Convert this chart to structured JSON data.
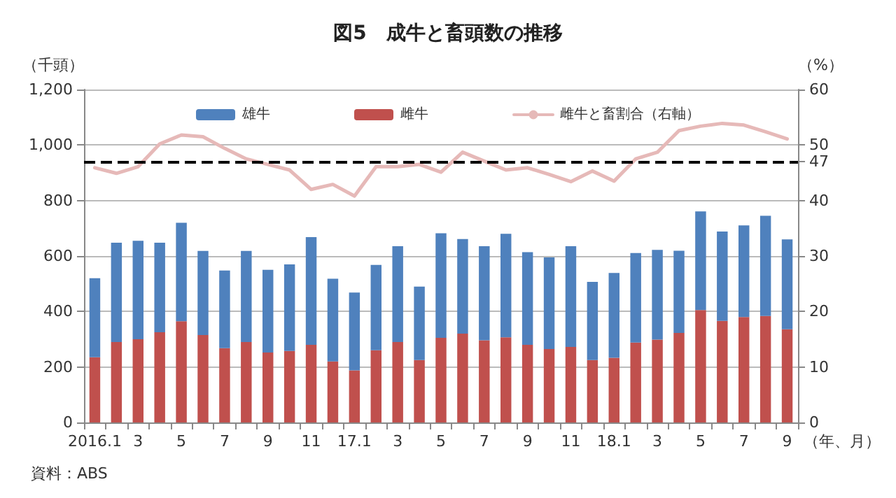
{
  "chart_data": {
    "type": "bar",
    "title": "図5　成牛と畜頭数の推移",
    "ylabel": "（千頭）",
    "y2label": "（%）",
    "xlabel": "（年、月）",
    "categories": [
      "2016.1",
      null,
      "3",
      null,
      "5",
      null,
      "7",
      null,
      "9",
      null,
      "11",
      null,
      "17.1",
      null,
      "3",
      null,
      "5",
      null,
      "7",
      null,
      "9",
      null,
      "11",
      null,
      "18.1",
      null,
      "3",
      null,
      "5",
      null,
      "7",
      null,
      "9"
    ],
    "stacked": true,
    "series": [
      {
        "name": "雌牛",
        "color": "#c0504d",
        "values": [
          235,
          290,
          300,
          325,
          365,
          315,
          268,
          290,
          252,
          258,
          280,
          220,
          188,
          260,
          290,
          225,
          305,
          320,
          296,
          307,
          280,
          265,
          272,
          225,
          233,
          288,
          299,
          323,
          405,
          366,
          380,
          384,
          336
        ]
      },
      {
        "name": "雄牛",
        "color": "#4f81bd",
        "values": [
          285,
          358,
          355,
          323,
          355,
          303,
          280,
          328,
          298,
          312,
          388,
          298,
          280,
          308,
          345,
          265,
          377,
          341,
          339,
          373,
          334,
          330,
          363,
          282,
          306,
          323,
          323,
          296,
          356,
          322,
          330,
          361,
          324
        ]
      },
      {
        "name": "雌牛と畜割合（右軸）",
        "type": "line",
        "axis": "y2",
        "color": "#e6b9b8",
        "values": [
          45.9,
          44.9,
          46.1,
          50.2,
          51.8,
          51.5,
          49.4,
          47.5,
          46.5,
          45.5,
          42.0,
          42.9,
          40.8,
          46.1,
          46.1,
          46.5,
          45.1,
          48.7,
          47.1,
          45.5,
          45.9,
          44.7,
          43.4,
          45.3,
          43.5,
          47.5,
          48.7,
          52.6,
          53.4,
          53.9,
          53.6,
          52.4,
          51.1
        ]
      }
    ],
    "ylim": [
      0,
      1200
    ],
    "yticks": [
      0,
      200,
      400,
      600,
      800,
      {
        "value": 1000,
        "label": "1,000"
      },
      {
        "value": 1200,
        "label": "1,200"
      }
    ],
    "y2lim": [
      0,
      60
    ],
    "y2ticks": [
      0,
      10,
      20,
      30,
      40,
      47,
      50,
      60
    ],
    "ref_lines": [
      {
        "axis": "y2",
        "value": 47,
        "color": "#000000",
        "line_style": "dashed"
      }
    ],
    "annotations": [
      "資料：ABS"
    ],
    "grid": "y",
    "legend": "top",
    "marker": "none"
  }
}
